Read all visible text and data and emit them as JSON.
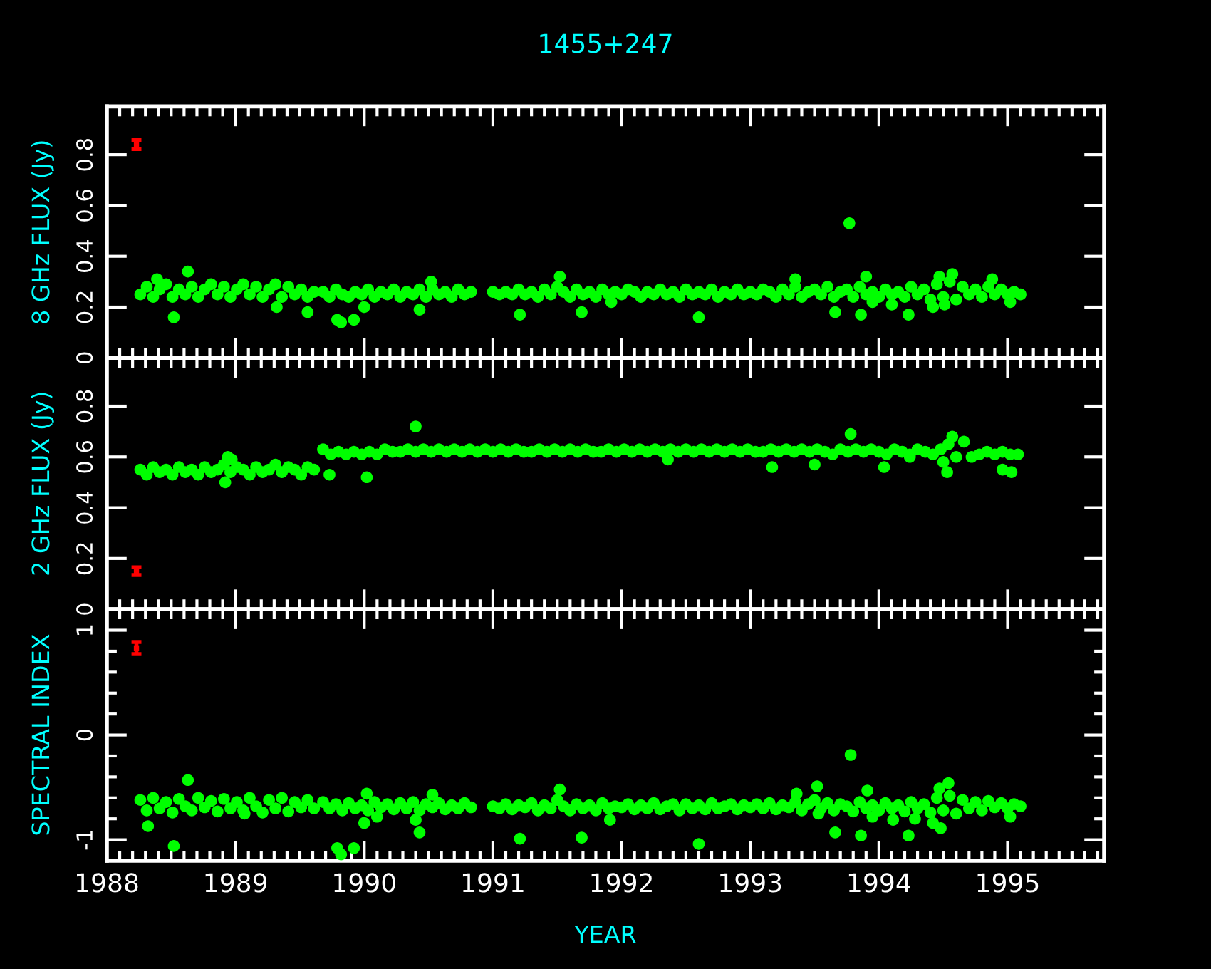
{
  "chart_data": [
    {
      "type": "scatter",
      "title": "1455+247",
      "ylabel": "8 GHz FLUX (Jy)",
      "tick_labels": "y",
      "xlim": [
        1988,
        1995.75
      ],
      "ylim": [
        0,
        0.99
      ],
      "yticks": [
        0,
        0.2,
        0.4,
        0.6,
        0.8
      ],
      "xticks": [
        1988,
        {
          "value": 1988.1,
          "label": null
        },
        {
          "value": 1988.2,
          "label": null
        },
        {
          "value": 1988.3,
          "label": null
        },
        {
          "value": 1988.4,
          "label": null
        },
        {
          "value": 1988.5,
          "label": null
        },
        {
          "value": 1988.6,
          "label": null
        },
        {
          "value": 1988.7,
          "label": null
        },
        {
          "value": 1988.8,
          "label": null
        },
        {
          "value": 1988.9,
          "label": null
        },
        1989,
        {
          "value": 1989.1,
          "label": null
        },
        {
          "value": 1989.2,
          "label": null
        },
        {
          "value": 1989.3,
          "label": null
        },
        {
          "value": 1989.4,
          "label": null
        },
        {
          "value": 1989.5,
          "label": null
        },
        {
          "value": 1989.6,
          "label": null
        },
        {
          "value": 1989.7,
          "label": null
        },
        {
          "value": 1989.8,
          "label": null
        },
        {
          "value": 1989.9,
          "label": null
        },
        1990,
        {
          "value": 1990.1,
          "label": null
        },
        {
          "value": 1990.2,
          "label": null
        },
        {
          "value": 1990.3,
          "label": null
        },
        {
          "value": 1990.4,
          "label": null
        },
        {
          "value": 1990.5,
          "label": null
        },
        {
          "value": 1990.6,
          "label": null
        },
        {
          "value": 1990.7,
          "label": null
        },
        {
          "value": 1990.8,
          "label": null
        },
        {
          "value": 1990.9,
          "label": null
        },
        1991,
        {
          "value": 1991.1,
          "label": null
        },
        {
          "value": 1991.2,
          "label": null
        },
        {
          "value": 1991.3,
          "label": null
        },
        {
          "value": 1991.4,
          "label": null
        },
        {
          "value": 1991.5,
          "label": null
        },
        {
          "value": 1991.6,
          "label": null
        },
        {
          "value": 1991.7,
          "label": null
        },
        {
          "value": 1991.8,
          "label": null
        },
        {
          "value": 1991.9,
          "label": null
        },
        1992,
        {
          "value": 1992.1,
          "label": null
        },
        {
          "value": 1992.2,
          "label": null
        },
        {
          "value": 1992.3,
          "label": null
        },
        {
          "value": 1992.4,
          "label": null
        },
        {
          "value": 1992.5,
          "label": null
        },
        {
          "value": 1992.6,
          "label": null
        },
        {
          "value": 1992.7,
          "label": null
        },
        {
          "value": 1992.8,
          "label": null
        },
        {
          "value": 1992.9,
          "label": null
        },
        1993,
        {
          "value": 1993.1,
          "label": null
        },
        {
          "value": 1993.2,
          "label": null
        },
        {
          "value": 1993.3,
          "label": null
        },
        {
          "value": 1993.4,
          "label": null
        },
        {
          "value": 1993.5,
          "label": null
        },
        {
          "value": 1993.6,
          "label": null
        },
        {
          "value": 1993.7,
          "label": null
        },
        {
          "value": 1993.8,
          "label": null
        },
        {
          "value": 1993.9,
          "label": null
        },
        1994,
        {
          "value": 1994.1,
          "label": null
        },
        {
          "value": 1994.2,
          "label": null
        },
        {
          "value": 1994.3,
          "label": null
        },
        {
          "value": 1994.4,
          "label": null
        },
        {
          "value": 1994.5,
          "label": null
        },
        {
          "value": 1994.6,
          "label": null
        },
        {
          "value": 1994.7,
          "label": null
        },
        {
          "value": 1994.8,
          "label": null
        },
        {
          "value": 1994.9,
          "label": null
        },
        1995,
        {
          "value": 1995.1,
          "label": null
        },
        {
          "value": 1995.2,
          "label": null
        },
        {
          "value": 1995.3,
          "label": null
        },
        {
          "value": 1995.4,
          "label": null
        },
        {
          "value": 1995.5,
          "label": null
        },
        {
          "value": 1995.6,
          "label": null
        },
        {
          "value": 1995.7,
          "label": null
        }
      ],
      "series": [
        {
          "color": "#00ff00",
          "marker": "circle",
          "x": [
            1988.26,
            1988.31,
            1988.36,
            1988.41,
            1988.46,
            1988.51,
            1988.56,
            1988.61,
            1988.66,
            1988.71,
            1988.76,
            1988.81,
            1988.86,
            1988.91,
            1988.96,
            1989.01,
            1989.06,
            1989.11,
            1989.16,
            1989.21,
            1989.26,
            1989.31,
            1989.36,
            1989.41,
            1989.46,
            1989.51,
            1989.56,
            1989.61,
            1989.68,
            1989.73,
            1989.78,
            1989.83,
            1989.88,
            1989.93,
            1989.98,
            1990.03,
            1990.08,
            1990.13,
            1990.18,
            1990.23,
            1990.28,
            1990.33,
            1990.38,
            1990.43,
            1990.48,
            1990.53,
            1990.58,
            1990.63,
            1990.68,
            1990.73,
            1990.78,
            1990.83,
            1991.0,
            1991.05,
            1991.1,
            1991.15,
            1991.2,
            1991.25,
            1991.3,
            1991.35,
            1991.4,
            1991.45,
            1991.5,
            1991.55,
            1991.6,
            1991.65,
            1991.7,
            1991.75,
            1991.8,
            1991.85,
            1991.9,
            1991.95,
            1992.0,
            1992.05,
            1992.1,
            1992.15,
            1992.2,
            1992.25,
            1992.3,
            1992.35,
            1992.4,
            1992.45,
            1992.5,
            1992.55,
            1992.6,
            1992.65,
            1992.7,
            1992.75,
            1992.8,
            1992.85,
            1992.9,
            1992.95,
            1993.0,
            1993.05,
            1993.1,
            1993.15,
            1993.2,
            1993.25,
            1993.3,
            1993.35,
            1993.4,
            1993.45,
            1993.5,
            1993.55,
            1993.6,
            1993.65,
            1993.7,
            1993.75,
            1993.8,
            1993.85,
            1993.9,
            1993.95,
            1994.0,
            1994.05,
            1994.1,
            1994.15,
            1994.2,
            1994.25,
            1994.3,
            1994.35,
            1994.4,
            1994.45,
            1994.5,
            1994.55,
            1994.6,
            1994.65,
            1994.7,
            1994.75,
            1994.8,
            1994.85,
            1994.9,
            1994.95,
            1995.0,
            1995.05,
            1995.1,
            1988.52,
            1988.63,
            1988.39,
            1989.32,
            1989.56,
            1989.79,
            1989.82,
            1989.92,
            1990.0,
            1990.43,
            1990.52,
            1991.21,
            1991.69,
            1991.52,
            1991.92,
            1992.6,
            1993.66,
            1993.77,
            1993.86,
            1994.23,
            1994.42,
            1993.35,
            1994.47,
            1994.57,
            1994.88,
            1995.02,
            1993.95,
            1993.9,
            1994.1,
            1994.51
          ],
          "values": [
            0.25,
            0.28,
            0.24,
            0.27,
            0.29,
            0.24,
            0.27,
            0.25,
            0.28,
            0.24,
            0.27,
            0.29,
            0.25,
            0.28,
            0.24,
            0.27,
            0.29,
            0.25,
            0.28,
            0.24,
            0.27,
            0.29,
            0.24,
            0.28,
            0.25,
            0.27,
            0.24,
            0.26,
            0.26,
            0.24,
            0.27,
            0.25,
            0.24,
            0.26,
            0.25,
            0.27,
            0.24,
            0.26,
            0.25,
            0.27,
            0.24,
            0.26,
            0.25,
            0.27,
            0.24,
            0.27,
            0.25,
            0.26,
            0.24,
            0.27,
            0.25,
            0.26,
            0.26,
            0.25,
            0.26,
            0.25,
            0.27,
            0.25,
            0.26,
            0.24,
            0.27,
            0.25,
            0.28,
            0.26,
            0.24,
            0.27,
            0.25,
            0.26,
            0.24,
            0.27,
            0.25,
            0.26,
            0.25,
            0.27,
            0.26,
            0.24,
            0.26,
            0.25,
            0.27,
            0.25,
            0.26,
            0.24,
            0.27,
            0.25,
            0.26,
            0.25,
            0.27,
            0.24,
            0.26,
            0.25,
            0.27,
            0.25,
            0.26,
            0.25,
            0.27,
            0.26,
            0.24,
            0.27,
            0.25,
            0.28,
            0.24,
            0.26,
            0.27,
            0.25,
            0.28,
            0.24,
            0.26,
            0.27,
            0.24,
            0.28,
            0.25,
            0.26,
            0.24,
            0.27,
            0.25,
            0.26,
            0.24,
            0.28,
            0.25,
            0.27,
            0.23,
            0.29,
            0.24,
            0.3,
            0.23,
            0.28,
            0.25,
            0.27,
            0.24,
            0.28,
            0.25,
            0.27,
            0.25,
            0.26,
            0.25,
            0.16,
            0.34,
            0.31,
            0.2,
            0.18,
            0.15,
            0.14,
            0.15,
            0.2,
            0.19,
            0.3,
            0.17,
            0.18,
            0.32,
            0.22,
            0.16,
            0.18,
            0.53,
            0.17,
            0.17,
            0.2,
            0.31,
            0.32,
            0.33,
            0.31,
            0.22,
            0.22,
            0.32,
            0.21,
            0.21
          ]
        },
        {
          "color": "#ff0000",
          "marker": "square",
          "x": [
            1988.23
          ],
          "values": [
            0.84
          ],
          "errors": [
            0.018
          ]
        }
      ]
    },
    {
      "type": "scatter",
      "ylabel": "2 GHz FLUX (Jy)",
      "tick_labels": "y",
      "xlim": [
        1988,
        1995.75
      ],
      "ylim": [
        0,
        0.99
      ],
      "yticks": [
        0,
        0.2,
        0.4,
        0.6,
        0.8
      ],
      "xticks": [
        1988,
        {
          "value": 1988.1,
          "label": null
        },
        {
          "value": 1988.2,
          "label": null
        },
        {
          "value": 1988.3,
          "label": null
        },
        {
          "value": 1988.4,
          "label": null
        },
        {
          "value": 1988.5,
          "label": null
        },
        {
          "value": 1988.6,
          "label": null
        },
        {
          "value": 1988.7,
          "label": null
        },
        {
          "value": 1988.8,
          "label": null
        },
        {
          "value": 1988.9,
          "label": null
        },
        1989,
        {
          "value": 1989.1,
          "label": null
        },
        {
          "value": 1989.2,
          "label": null
        },
        {
          "value": 1989.3,
          "label": null
        },
        {
          "value": 1989.4,
          "label": null
        },
        {
          "value": 1989.5,
          "label": null
        },
        {
          "value": 1989.6,
          "label": null
        },
        {
          "value": 1989.7,
          "label": null
        },
        {
          "value": 1989.8,
          "label": null
        },
        {
          "value": 1989.9,
          "label": null
        },
        1990,
        {
          "value": 1990.1,
          "label": null
        },
        {
          "value": 1990.2,
          "label": null
        },
        {
          "value": 1990.3,
          "label": null
        },
        {
          "value": 1990.4,
          "label": null
        },
        {
          "value": 1990.5,
          "label": null
        },
        {
          "value": 1990.6,
          "label": null
        },
        {
          "value": 1990.7,
          "label": null
        },
        {
          "value": 1990.8,
          "label": null
        },
        {
          "value": 1990.9,
          "label": null
        },
        1991,
        {
          "value": 1991.1,
          "label": null
        },
        {
          "value": 1991.2,
          "label": null
        },
        {
          "value": 1991.3,
          "label": null
        },
        {
          "value": 1991.4,
          "label": null
        },
        {
          "value": 1991.5,
          "label": null
        },
        {
          "value": 1991.6,
          "label": null
        },
        {
          "value": 1991.7,
          "label": null
        },
        {
          "value": 1991.8,
          "label": null
        },
        {
          "value": 1991.9,
          "label": null
        },
        1992,
        {
          "value": 1992.1,
          "label": null
        },
        {
          "value": 1992.2,
          "label": null
        },
        {
          "value": 1992.3,
          "label": null
        },
        {
          "value": 1992.4,
          "label": null
        },
        {
          "value": 1992.5,
          "label": null
        },
        {
          "value": 1992.6,
          "label": null
        },
        {
          "value": 1992.7,
          "label": null
        },
        {
          "value": 1992.8,
          "label": null
        },
        {
          "value": 1992.9,
          "label": null
        },
        1993,
        {
          "value": 1993.1,
          "label": null
        },
        {
          "value": 1993.2,
          "label": null
        },
        {
          "value": 1993.3,
          "label": null
        },
        {
          "value": 1993.4,
          "label": null
        },
        {
          "value": 1993.5,
          "label": null
        },
        {
          "value": 1993.6,
          "label": null
        },
        {
          "value": 1993.7,
          "label": null
        },
        {
          "value": 1993.8,
          "label": null
        },
        {
          "value": 1993.9,
          "label": null
        },
        1994,
        {
          "value": 1994.1,
          "label": null
        },
        {
          "value": 1994.2,
          "label": null
        },
        {
          "value": 1994.3,
          "label": null
        },
        {
          "value": 1994.4,
          "label": null
        },
        {
          "value": 1994.5,
          "label": null
        },
        {
          "value": 1994.6,
          "label": null
        },
        {
          "value": 1994.7,
          "label": null
        },
        {
          "value": 1994.8,
          "label": null
        },
        {
          "value": 1994.9,
          "label": null
        },
        1995,
        {
          "value": 1995.1,
          "label": null
        },
        {
          "value": 1995.2,
          "label": null
        },
        {
          "value": 1995.3,
          "label": null
        },
        {
          "value": 1995.4,
          "label": null
        },
        {
          "value": 1995.5,
          "label": null
        },
        {
          "value": 1995.6,
          "label": null
        },
        {
          "value": 1995.7,
          "label": null
        }
      ],
      "series": [
        {
          "color": "#00ff00",
          "marker": "circle",
          "x": [
            1988.26,
            1988.31,
            1988.36,
            1988.41,
            1988.46,
            1988.51,
            1988.56,
            1988.61,
            1988.66,
            1988.71,
            1988.76,
            1988.81,
            1988.86,
            1988.91,
            1988.96,
            1989.01,
            1989.06,
            1989.11,
            1989.16,
            1989.21,
            1989.26,
            1989.31,
            1989.36,
            1989.41,
            1989.46,
            1989.51,
            1989.56,
            1989.61,
            1989.68,
            1989.74,
            1989.8,
            1989.86,
            1989.92,
            1989.98,
            1990.04,
            1990.1,
            1990.16,
            1990.22,
            1990.28,
            1990.34,
            1990.4,
            1990.46,
            1990.52,
            1990.58,
            1990.64,
            1990.7,
            1990.76,
            1990.82,
            1990.88,
            1990.94,
            1991.0,
            1991.06,
            1991.12,
            1991.18,
            1991.24,
            1991.3,
            1991.36,
            1991.42,
            1991.48,
            1991.54,
            1991.6,
            1991.66,
            1991.72,
            1991.78,
            1991.84,
            1991.9,
            1991.96,
            1992.02,
            1992.08,
            1992.14,
            1992.2,
            1992.26,
            1992.32,
            1992.38,
            1992.44,
            1992.5,
            1992.56,
            1992.62,
            1992.68,
            1992.74,
            1992.8,
            1992.86,
            1992.92,
            1992.98,
            1993.04,
            1993.1,
            1993.16,
            1993.22,
            1993.28,
            1993.34,
            1993.4,
            1993.46,
            1993.52,
            1993.58,
            1993.64,
            1993.7,
            1993.76,
            1993.82,
            1993.88,
            1993.94,
            1994.0,
            1994.06,
            1994.12,
            1994.18,
            1994.24,
            1994.3,
            1994.36,
            1994.42,
            1994.48,
            1994.54,
            1994.6,
            1994.66,
            1994.72,
            1994.78,
            1994.84,
            1994.9,
            1994.96,
            1995.02,
            1995.08,
            1990.4,
            1989.73,
            1990.02,
            1988.92,
            1988.94,
            1993.78,
            1993.17,
            1994.04,
            1993.5,
            1992.36,
            1994.96,
            1995.03,
            1994.53,
            1994.5,
            1994.57,
            1994.24,
            1988.97
          ],
          "values": [
            0.55,
            0.53,
            0.56,
            0.54,
            0.55,
            0.53,
            0.56,
            0.54,
            0.55,
            0.53,
            0.56,
            0.54,
            0.55,
            0.57,
            0.54,
            0.56,
            0.55,
            0.53,
            0.56,
            0.54,
            0.55,
            0.57,
            0.54,
            0.56,
            0.55,
            0.53,
            0.56,
            0.55,
            0.63,
            0.61,
            0.62,
            0.61,
            0.62,
            0.61,
            0.62,
            0.61,
            0.63,
            0.62,
            0.62,
            0.63,
            0.62,
            0.63,
            0.62,
            0.63,
            0.62,
            0.63,
            0.62,
            0.63,
            0.62,
            0.63,
            0.62,
            0.63,
            0.62,
            0.63,
            0.62,
            0.62,
            0.63,
            0.62,
            0.63,
            0.62,
            0.63,
            0.62,
            0.63,
            0.62,
            0.62,
            0.63,
            0.62,
            0.63,
            0.62,
            0.63,
            0.62,
            0.63,
            0.62,
            0.63,
            0.62,
            0.63,
            0.62,
            0.63,
            0.62,
            0.63,
            0.62,
            0.63,
            0.62,
            0.63,
            0.62,
            0.62,
            0.63,
            0.62,
            0.63,
            0.62,
            0.63,
            0.62,
            0.63,
            0.62,
            0.61,
            0.63,
            0.62,
            0.63,
            0.62,
            0.63,
            0.62,
            0.61,
            0.63,
            0.62,
            0.61,
            0.63,
            0.62,
            0.61,
            0.63,
            0.65,
            0.6,
            0.66,
            0.6,
            0.61,
            0.62,
            0.61,
            0.62,
            0.61,
            0.61,
            0.72,
            0.53,
            0.52,
            0.5,
            0.6,
            0.69,
            0.56,
            0.56,
            0.57,
            0.59,
            0.55,
            0.54,
            0.54,
            0.58,
            0.68,
            0.6,
            0.59
          ]
        },
        {
          "color": "#ff0000",
          "marker": "square",
          "x": [
            1988.23
          ],
          "values": [
            0.15
          ],
          "errors": [
            0.015
          ]
        }
      ]
    },
    {
      "type": "scatter",
      "ylabel": "SPECTRAL INDEX",
      "xlabel": "YEAR",
      "xlim": [
        1988,
        1995.75
      ],
      "ylim": [
        -1.2,
        1.2
      ],
      "yticks": [
        -1,
        {
          "value": -0.8,
          "label": null
        },
        {
          "value": -0.6,
          "label": null
        },
        {
          "value": -0.4,
          "label": null
        },
        {
          "value": -0.2,
          "label": null
        },
        0,
        {
          "value": 0.2,
          "label": null
        },
        {
          "value": 0.4,
          "label": null
        },
        {
          "value": 0.6,
          "label": null
        },
        {
          "value": 0.8,
          "label": null
        },
        1
      ],
      "xticks": [
        1988,
        {
          "value": 1988.1,
          "label": null
        },
        {
          "value": 1988.2,
          "label": null
        },
        {
          "value": 1988.3,
          "label": null
        },
        {
          "value": 1988.4,
          "label": null
        },
        {
          "value": 1988.5,
          "label": null
        },
        {
          "value": 1988.6,
          "label": null
        },
        {
          "value": 1988.7,
          "label": null
        },
        {
          "value": 1988.8,
          "label": null
        },
        {
          "value": 1988.9,
          "label": null
        },
        1989,
        {
          "value": 1989.1,
          "label": null
        },
        {
          "value": 1989.2,
          "label": null
        },
        {
          "value": 1989.3,
          "label": null
        },
        {
          "value": 1989.4,
          "label": null
        },
        {
          "value": 1989.5,
          "label": null
        },
        {
          "value": 1989.6,
          "label": null
        },
        {
          "value": 1989.7,
          "label": null
        },
        {
          "value": 1989.8,
          "label": null
        },
        {
          "value": 1989.9,
          "label": null
        },
        1990,
        {
          "value": 1990.1,
          "label": null
        },
        {
          "value": 1990.2,
          "label": null
        },
        {
          "value": 1990.3,
          "label": null
        },
        {
          "value": 1990.4,
          "label": null
        },
        {
          "value": 1990.5,
          "label": null
        },
        {
          "value": 1990.6,
          "label": null
        },
        {
          "value": 1990.7,
          "label": null
        },
        {
          "value": 1990.8,
          "label": null
        },
        {
          "value": 1990.9,
          "label": null
        },
        1991,
        {
          "value": 1991.1,
          "label": null
        },
        {
          "value": 1991.2,
          "label": null
        },
        {
          "value": 1991.3,
          "label": null
        },
        {
          "value": 1991.4,
          "label": null
        },
        {
          "value": 1991.5,
          "label": null
        },
        {
          "value": 1991.6,
          "label": null
        },
        {
          "value": 1991.7,
          "label": null
        },
        {
          "value": 1991.8,
          "label": null
        },
        {
          "value": 1991.9,
          "label": null
        },
        1992,
        {
          "value": 1992.1,
          "label": null
        },
        {
          "value": 1992.2,
          "label": null
        },
        {
          "value": 1992.3,
          "label": null
        },
        {
          "value": 1992.4,
          "label": null
        },
        {
          "value": 1992.5,
          "label": null
        },
        {
          "value": 1992.6,
          "label": null
        },
        {
          "value": 1992.7,
          "label": null
        },
        {
          "value": 1992.8,
          "label": null
        },
        {
          "value": 1992.9,
          "label": null
        },
        1993,
        {
          "value": 1993.1,
          "label": null
        },
        {
          "value": 1993.2,
          "label": null
        },
        {
          "value": 1993.3,
          "label": null
        },
        {
          "value": 1993.4,
          "label": null
        },
        {
          "value": 1993.5,
          "label": null
        },
        {
          "value": 1993.6,
          "label": null
        },
        {
          "value": 1993.7,
          "label": null
        },
        {
          "value": 1993.8,
          "label": null
        },
        {
          "value": 1993.9,
          "label": null
        },
        1994,
        {
          "value": 1994.1,
          "label": null
        },
        {
          "value": 1994.2,
          "label": null
        },
        {
          "value": 1994.3,
          "label": null
        },
        {
          "value": 1994.4,
          "label": null
        },
        {
          "value": 1994.5,
          "label": null
        },
        {
          "value": 1994.6,
          "label": null
        },
        {
          "value": 1994.7,
          "label": null
        },
        {
          "value": 1994.8,
          "label": null
        },
        {
          "value": 1994.9,
          "label": null
        },
        1995,
        {
          "value": 1995.1,
          "label": null
        },
        {
          "value": 1995.2,
          "label": null
        },
        {
          "value": 1995.3,
          "label": null
        },
        {
          "value": 1995.4,
          "label": null
        },
        {
          "value": 1995.5,
          "label": null
        },
        {
          "value": 1995.6,
          "label": null
        },
        {
          "value": 1995.7,
          "label": null
        }
      ],
      "series": [
        {
          "color": "#00ff00",
          "marker": "circle",
          "x": [
            1988.26,
            1988.31,
            1988.36,
            1988.41,
            1988.46,
            1988.51,
            1988.56,
            1988.61,
            1988.66,
            1988.71,
            1988.76,
            1988.81,
            1988.86,
            1988.91,
            1988.96,
            1989.01,
            1989.06,
            1989.11,
            1989.16,
            1989.21,
            1989.26,
            1989.31,
            1989.36,
            1989.41,
            1989.46,
            1989.51,
            1989.56,
            1989.61,
            1989.68,
            1989.73,
            1989.78,
            1989.83,
            1989.88,
            1989.93,
            1989.98,
            1990.03,
            1990.08,
            1990.13,
            1990.18,
            1990.23,
            1990.28,
            1990.33,
            1990.38,
            1990.43,
            1990.48,
            1990.53,
            1990.58,
            1990.63,
            1990.68,
            1990.73,
            1990.78,
            1990.83,
            1991.0,
            1991.05,
            1991.1,
            1991.15,
            1991.2,
            1991.25,
            1991.3,
            1991.35,
            1991.4,
            1991.45,
            1991.5,
            1991.55,
            1991.6,
            1991.65,
            1991.7,
            1991.75,
            1991.8,
            1991.85,
            1991.9,
            1991.95,
            1992.0,
            1992.05,
            1992.1,
            1992.15,
            1992.2,
            1992.25,
            1992.3,
            1992.35,
            1992.4,
            1992.45,
            1992.5,
            1992.55,
            1992.6,
            1992.65,
            1992.7,
            1992.75,
            1992.8,
            1992.85,
            1992.9,
            1992.95,
            1993.0,
            1993.05,
            1993.1,
            1993.15,
            1993.2,
            1993.25,
            1993.3,
            1993.35,
            1993.4,
            1993.45,
            1993.5,
            1993.55,
            1993.6,
            1993.65,
            1993.7,
            1993.75,
            1993.8,
            1993.85,
            1993.9,
            1993.95,
            1994.0,
            1994.05,
            1994.1,
            1994.15,
            1994.2,
            1994.25,
            1994.3,
            1994.35,
            1994.4,
            1994.45,
            1994.5,
            1994.55,
            1994.6,
            1994.65,
            1994.7,
            1994.75,
            1994.8,
            1994.85,
            1994.9,
            1994.95,
            1995.0,
            1995.05,
            1995.1,
            1988.63,
            1988.52,
            1988.32,
            1989.79,
            1989.82,
            1989.92,
            1990.0,
            1990.02,
            1990.43,
            1990.4,
            1991.21,
            1991.69,
            1991.52,
            1990.1,
            1990.53,
            1991.91,
            1989.07,
            1992.6,
            1993.78,
            1993.66,
            1993.86,
            1994.23,
            1994.42,
            1994.48,
            1993.95,
            1994.11,
            1994.28,
            1995.02,
            1993.36,
            1993.52,
            1993.91,
            1994.54,
            1994.47,
            1993.53
          ],
          "values": [
            -0.62,
            -0.72,
            -0.6,
            -0.7,
            -0.64,
            -0.74,
            -0.61,
            -0.68,
            -0.72,
            -0.6,
            -0.69,
            -0.63,
            -0.73,
            -0.61,
            -0.7,
            -0.64,
            -0.72,
            -0.6,
            -0.68,
            -0.74,
            -0.62,
            -0.7,
            -0.6,
            -0.73,
            -0.64,
            -0.69,
            -0.62,
            -0.7,
            -0.64,
            -0.7,
            -0.66,
            -0.72,
            -0.65,
            -0.7,
            -0.67,
            -0.72,
            -0.64,
            -0.69,
            -0.66,
            -0.71,
            -0.65,
            -0.7,
            -0.64,
            -0.72,
            -0.66,
            -0.69,
            -0.65,
            -0.71,
            -0.67,
            -0.7,
            -0.65,
            -0.69,
            -0.68,
            -0.7,
            -0.66,
            -0.71,
            -0.67,
            -0.69,
            -0.65,
            -0.72,
            -0.67,
            -0.7,
            -0.62,
            -0.68,
            -0.72,
            -0.66,
            -0.7,
            -0.67,
            -0.72,
            -0.65,
            -0.7,
            -0.68,
            -0.69,
            -0.66,
            -0.71,
            -0.67,
            -0.7,
            -0.65,
            -0.71,
            -0.68,
            -0.66,
            -0.72,
            -0.66,
            -0.7,
            -0.67,
            -0.71,
            -0.65,
            -0.7,
            -0.68,
            -0.66,
            -0.71,
            -0.67,
            -0.69,
            -0.66,
            -0.7,
            -0.65,
            -0.71,
            -0.67,
            -0.69,
            -0.64,
            -0.72,
            -0.66,
            -0.62,
            -0.7,
            -0.65,
            -0.72,
            -0.66,
            -0.68,
            -0.73,
            -0.64,
            -0.7,
            -0.67,
            -0.72,
            -0.65,
            -0.7,
            -0.67,
            -0.73,
            -0.64,
            -0.7,
            -0.66,
            -0.74,
            -0.6,
            -0.72,
            -0.58,
            -0.75,
            -0.62,
            -0.7,
            -0.64,
            -0.72,
            -0.63,
            -0.69,
            -0.65,
            -0.7,
            -0.66,
            -0.68,
            -0.43,
            -1.06,
            -0.87,
            -1.08,
            -1.14,
            -1.08,
            -0.84,
            -0.56,
            -0.93,
            -0.81,
            -0.99,
            -0.98,
            -0.52,
            -0.78,
            -0.57,
            -0.81,
            -0.75,
            -1.04,
            -0.19,
            -0.93,
            -0.96,
            -0.96,
            -0.84,
            -0.89,
            -0.78,
            -0.81,
            -0.8,
            -0.78,
            -0.56,
            -0.49,
            -0.53,
            -0.46,
            -0.51,
            -0.75
          ]
        },
        {
          "color": "#ff0000",
          "marker": "square",
          "x": [
            1988.23
          ],
          "values": [
            0.83
          ],
          "errors": [
            0.058
          ]
        }
      ]
    }
  ]
}
